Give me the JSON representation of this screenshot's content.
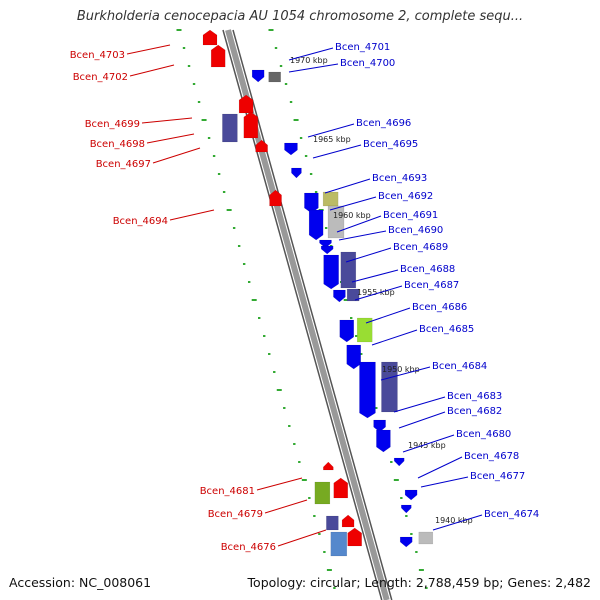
{
  "title": "Burkholderia cenocepacia AU 1054 chromosome 2, complete sequ...",
  "footer": {
    "accession_label": "Accession:",
    "accession": "NC_008061",
    "topology_label": "Topology:",
    "topology": "circular",
    "length_label": "Length:",
    "length": "2,788,459 bp",
    "genes_label": "Genes:",
    "genes": "2,482"
  },
  "colors": {
    "forward_genes": "#0000ee",
    "reverse_genes": "#ee0000",
    "backbone": "#999999",
    "tick_marks": "#33aa33"
  },
  "kbp_markers": [
    "1970 kbp",
    "1965 kbp",
    "1960 kbp",
    "1955 kbp",
    "1950 kbp",
    "1945 kbp",
    "1940 kbp"
  ],
  "right_genes": [
    "Bcen_4701",
    "Bcen_4700",
    "Bcen_4696",
    "Bcen_4695",
    "Bcen_4693",
    "Bcen_4692",
    "Bcen_4691",
    "Bcen_4690",
    "Bcen_4689",
    "Bcen_4688",
    "Bcen_4687",
    "Bcen_4686",
    "Bcen_4685",
    "Bcen_4684",
    "Bcen_4683",
    "Bcen_4682",
    "Bcen_4680",
    "Bcen_4678",
    "Bcen_4677",
    "Bcen_4674"
  ],
  "left_genes": [
    "Bcen_4703",
    "Bcen_4702",
    "Bcen_4699",
    "Bcen_4698",
    "Bcen_4697",
    "Bcen_4694",
    "Bcen_4681",
    "Bcen_4679",
    "Bcen_4676"
  ]
}
